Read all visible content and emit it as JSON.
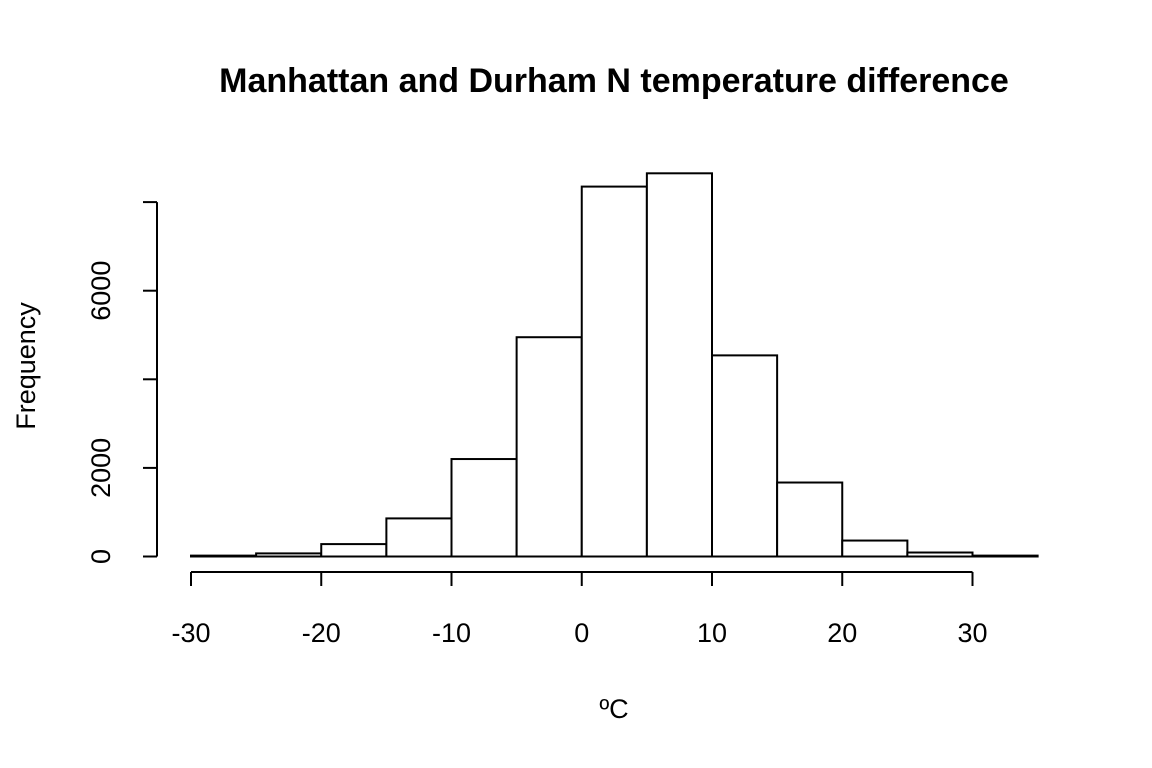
{
  "chart_data": {
    "type": "bar",
    "title": "Manhattan and Durham N temperature difference",
    "xlabel": "ºC",
    "ylabel": "Frequency",
    "bin_edges": [
      -30,
      -25,
      -20,
      -15,
      -10,
      -5,
      0,
      5,
      10,
      15,
      20,
      25,
      30,
      35
    ],
    "values": [
      20,
      70,
      280,
      860,
      2200,
      4950,
      8350,
      8650,
      4540,
      1670,
      360,
      90,
      20
    ],
    "xlim": [
      -30,
      35
    ],
    "ylim": [
      0,
      8000
    ],
    "x_ticks": [
      -30,
      -20,
      -10,
      0,
      10,
      20,
      30
    ],
    "y_ticks": [
      0,
      2000,
      4000,
      6000,
      8000
    ],
    "y_tick_labels": [
      "0",
      "2000",
      "",
      "6000",
      ""
    ],
    "grid": false,
    "legend": "none"
  }
}
